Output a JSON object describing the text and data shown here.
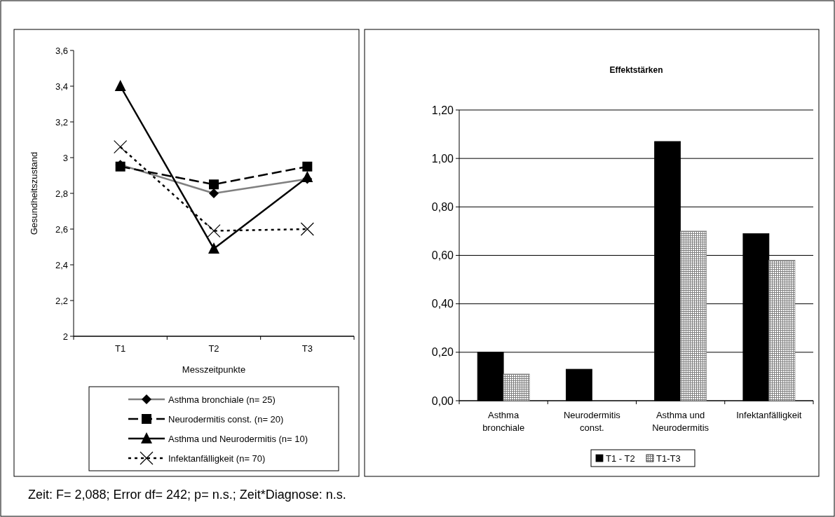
{
  "chart_data": [
    {
      "type": "line",
      "categories": [
        "T1",
        "T2",
        "T3"
      ],
      "xlabel": "Messzeitpunkte",
      "ylabel": "Gesundheitszustand",
      "ylim": [
        2,
        3.6
      ],
      "yticks": [
        2,
        {
          "value": 2.2,
          "label": "2,2"
        },
        {
          "value": 2.4,
          "label": "2,4"
        },
        {
          "value": 2.6,
          "label": "2,6"
        },
        {
          "value": 2.8,
          "label": "2,8"
        },
        3,
        {
          "value": 3.2,
          "label": "3,2"
        },
        {
          "value": 3.4,
          "label": "3,4"
        },
        {
          "value": 3.6,
          "label": "3,6"
        }
      ],
      "grid": false,
      "legend": "bottom",
      "annotations": [
        "Zeit: F= 2,088; Error df= 242; p= n.s.; Zeit*Diagnose: n.s."
      ],
      "series": [
        {
          "name": "Asthma bronchiale (n= 25)",
          "color": "#808080",
          "marker": "diamond",
          "line_style": "solid",
          "values": [
            2.96,
            2.8,
            2.88
          ]
        },
        {
          "name": "Neurodermitis const. (n= 20)",
          "color": "#000000",
          "marker": "square",
          "line_style": "dashed",
          "values": [
            2.95,
            2.85,
            2.95
          ]
        },
        {
          "name": "Asthma und Neurodermitis (n= 10)",
          "color": "#000000",
          "marker": "triangle",
          "line_style": "solid",
          "values": [
            3.4,
            2.49,
            2.89
          ]
        },
        {
          "name": "Infektanfälligkeit (n= 70)",
          "color": "#000000",
          "marker": "cross",
          "line_style": "dotted",
          "values": [
            3.06,
            2.59,
            2.6
          ]
        }
      ]
    },
    {
      "type": "bar",
      "title": "Effektstärken",
      "categories": [
        "Asthma bronchiale",
        "Neurodermitis const.",
        "Asthma und Neurodermitis",
        "Infektanfälligkeit"
      ],
      "ylim": [
        0,
        1.2
      ],
      "yticks": [
        {
          "value": 0,
          "label": "0,00"
        },
        {
          "value": 0.2,
          "label": "0,20"
        },
        {
          "value": 0.4,
          "label": "0,40"
        },
        {
          "value": 0.6,
          "label": "0,60"
        },
        {
          "value": 0.8,
          "label": "0,80"
        },
        {
          "value": 1,
          "label": "1,00"
        },
        {
          "value": 1.2,
          "label": "1,20"
        }
      ],
      "grid": "y",
      "legend": "bottom",
      "series": [
        {
          "name": "T1 - T2",
          "color": "#000000",
          "values": [
            0.2,
            0.13,
            1.07,
            0.69
          ]
        },
        {
          "name": "T1-T3",
          "color": "#808080",
          "values": [
            0.11,
            null,
            0.7,
            0.58
          ]
        }
      ]
    }
  ]
}
